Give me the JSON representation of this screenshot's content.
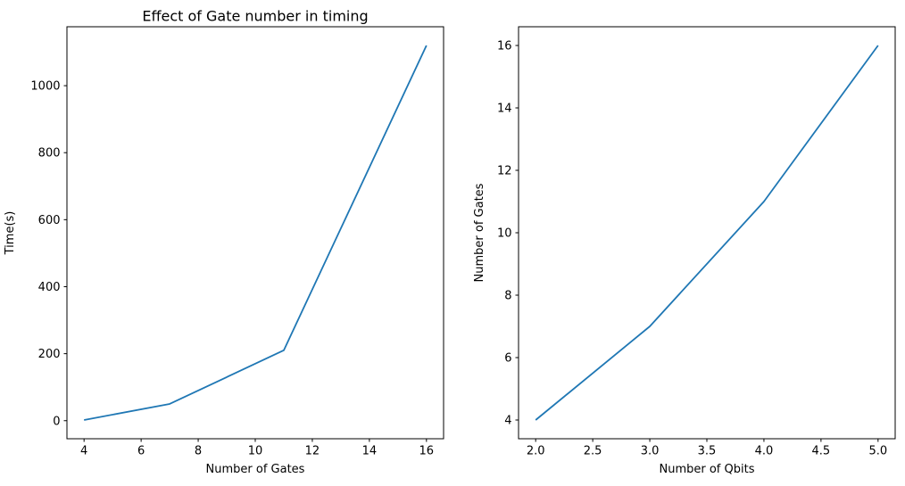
{
  "figure": {
    "background": "#ffffff",
    "text_color": "#000000"
  },
  "chart_data": [
    {
      "type": "line",
      "title": "Effect of Gate number in timing",
      "xlabel": "Number of Gates",
      "ylabel": "Time(s)",
      "x": [
        4,
        7,
        11,
        16
      ],
      "y": [
        2,
        50,
        210,
        1120
      ],
      "xlim": [
        3.4,
        16.6
      ],
      "ylim": [
        -53.9,
        1175.9
      ],
      "xticks": {
        "values": [
          4,
          6,
          8,
          10,
          12,
          14,
          16
        ],
        "labels": [
          "4",
          "6",
          "8",
          "10",
          "12",
          "14",
          "16"
        ]
      },
      "yticks": {
        "values": [
          0,
          200,
          400,
          600,
          800,
          1000
        ],
        "labels": [
          "0",
          "200",
          "400",
          "600",
          "800",
          "1000"
        ]
      },
      "line_color": "#1f77b4",
      "grid": false,
      "legend": null
    },
    {
      "type": "line",
      "title": "",
      "xlabel": "Number of Qbits",
      "ylabel": "Number of Gates",
      "x": [
        2,
        3,
        4,
        5
      ],
      "y": [
        4,
        7,
        11,
        16
      ],
      "xlim": [
        1.85,
        5.15
      ],
      "ylim": [
        3.4,
        16.6
      ],
      "xticks": {
        "values": [
          2.0,
          2.5,
          3.0,
          3.5,
          4.0,
          4.5,
          5.0
        ],
        "labels": [
          "2.0",
          "2.5",
          "3.0",
          "3.5",
          "4.0",
          "4.5",
          "5.0"
        ]
      },
      "yticks": {
        "values": [
          4,
          6,
          8,
          10,
          12,
          14,
          16
        ],
        "labels": [
          "4",
          "6",
          "8",
          "10",
          "12",
          "14",
          "16"
        ]
      },
      "line_color": "#1f77b4",
      "grid": false,
      "legend": null
    }
  ]
}
